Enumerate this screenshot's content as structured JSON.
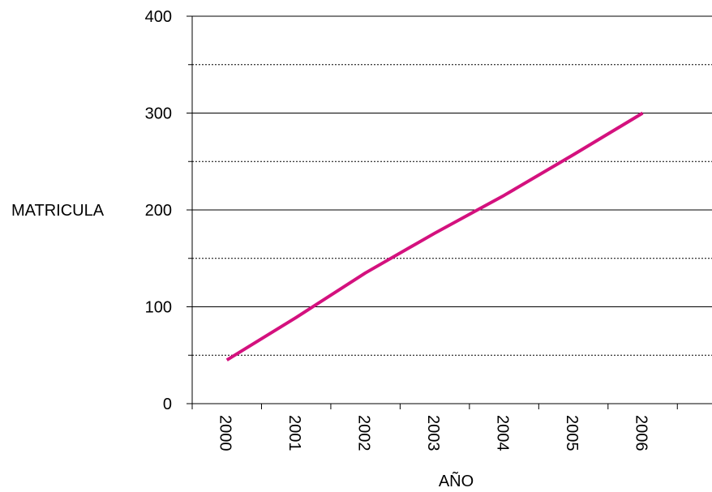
{
  "chart_data": {
    "type": "line",
    "title": "",
    "xlabel": "AÑO",
    "ylabel": "MATRICULA",
    "categories": [
      "2000",
      "2001",
      "2002",
      "2003",
      "2004",
      "2005",
      "2006"
    ],
    "series": [
      {
        "values": [
          45,
          89,
          135,
          176,
          215,
          257,
          300
        ],
        "color": "#d4117e"
      }
    ],
    "ylim": [
      0,
      400
    ],
    "yticks": [
      0,
      100,
      200,
      300,
      400
    ],
    "minor_gridlines": [
      50,
      150,
      250,
      350
    ],
    "grid": true,
    "legend": "none"
  }
}
